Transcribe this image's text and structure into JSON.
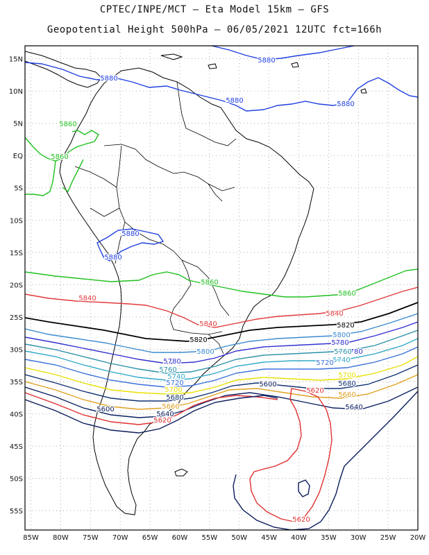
{
  "title": {
    "line1": "CPTEC/INPE/MCT –  Eta Model 15km – GFS",
    "line2": "Geopotential Height 500hPa – 06/05/2021 12UTC fct=166h"
  },
  "axes": {
    "lat_labels": [
      "15N",
      "10N",
      "5N",
      "EQ",
      "5S",
      "10S",
      "15S",
      "20S",
      "25S",
      "30S",
      "35S",
      "40S",
      "45S",
      "50S",
      "55S"
    ],
    "lon_labels": [
      "85W",
      "80W",
      "75W",
      "70W",
      "65W",
      "60W",
      "55W",
      "50W",
      "45W",
      "40W",
      "35W",
      "30W",
      "25W",
      "20W"
    ],
    "lat_range": [
      17,
      -58
    ],
    "lon_range": [
      -86,
      -20
    ]
  },
  "colors": {
    "5880": "#1f3fe0",
    "5860": "#1ec01e",
    "5840": "#e03838",
    "5820": "#000000",
    "5800": "#3a8ad0",
    "5780": "#3030d0",
    "5760": "#2a90a8",
    "5740": "#30a8c8",
    "5720": "#3870d8",
    "5700": "#e8e000",
    "5680": "#103070",
    "5660": "#e0a020",
    "5640": "#0a2060",
    "5620": "#e03030",
    "5600": "#0a1a5a",
    "coast": "#000000"
  },
  "contour_labels": [
    {
      "text": "5880",
      "level": "5880"
    },
    {
      "text": "5880",
      "level": "5880"
    },
    {
      "text": "5880",
      "level": "5880"
    },
    {
      "text": "5880",
      "level": "5880"
    },
    {
      "text": "5880",
      "level": "5880"
    },
    {
      "text": "5880",
      "level": "5880"
    },
    {
      "text": "5860",
      "level": "5860"
    },
    {
      "text": "5860",
      "level": "5860"
    },
    {
      "text": "5860",
      "level": "5860"
    },
    {
      "text": "5860",
      "level": "5860"
    },
    {
      "text": "5840",
      "level": "5840"
    },
    {
      "text": "5840",
      "level": "5840"
    },
    {
      "text": "5840",
      "level": "5840"
    },
    {
      "text": "5820",
      "level": "5820"
    },
    {
      "text": "5820",
      "level": "5820"
    },
    {
      "text": "5800",
      "level": "5800"
    },
    {
      "text": "5800",
      "level": "5800"
    },
    {
      "text": "5780",
      "level": "5780"
    },
    {
      "text": "5780",
      "level": "5780"
    },
    {
      "text": "5780",
      "level": "5780"
    },
    {
      "text": "5760",
      "level": "5760"
    },
    {
      "text": "5760",
      "level": "5760"
    },
    {
      "text": "5740",
      "level": "5740"
    },
    {
      "text": "5740",
      "level": "5740"
    },
    {
      "text": "5720",
      "level": "5720"
    },
    {
      "text": "5720",
      "level": "5720"
    },
    {
      "text": "5700",
      "level": "5700"
    },
    {
      "text": "5700",
      "level": "5700"
    },
    {
      "text": "5680",
      "level": "5680"
    },
    {
      "text": "5680",
      "level": "5680"
    },
    {
      "text": "5660",
      "level": "5660"
    },
    {
      "text": "5660",
      "level": "5660"
    },
    {
      "text": "5640",
      "level": "5640"
    },
    {
      "text": "5640",
      "level": "5640"
    },
    {
      "text": "5620",
      "level": "5620"
    },
    {
      "text": "5620",
      "level": "5620"
    },
    {
      "text": "5620",
      "level": "5620"
    },
    {
      "text": "5600",
      "level": "5600"
    },
    {
      "text": "5600",
      "level": "5600"
    }
  ]
}
